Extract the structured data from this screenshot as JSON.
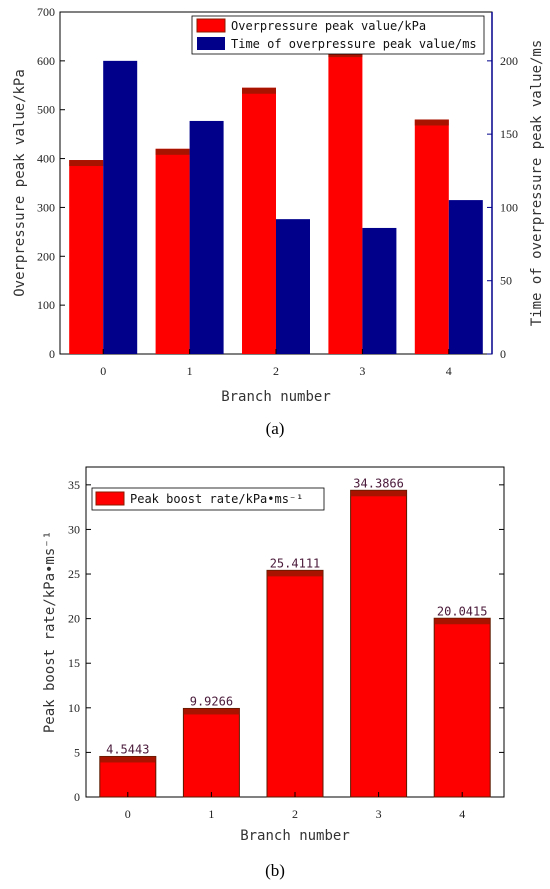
{
  "colors": {
    "red": "#ff0000",
    "navy": "#00008b",
    "cap": "#8b1a00",
    "leftAxis": "#000000",
    "rightAxis": "#00008b"
  },
  "chart_data": [
    {
      "type": "bar",
      "panel": "(a)",
      "categories": [
        "0",
        "1",
        "2",
        "3",
        "4"
      ],
      "xlabel": "Branch number",
      "ylabel": "Overpressure peak value/kPa",
      "y2label": "Time of overpressure peak value/ms",
      "ylim": [
        0,
        700
      ],
      "y2lim": [
        0,
        233.33
      ],
      "yticks": [
        0,
        100,
        200,
        300,
        400,
        500,
        600,
        700
      ],
      "y2ticks": [
        0,
        50,
        100,
        150,
        200
      ],
      "legend": "top-right",
      "grid": false,
      "series": [
        {
          "name": "Overpressure peak value/kPa",
          "axis": "left",
          "color": "#ff0000",
          "values": [
            397,
            420,
            545,
            620,
            480
          ]
        },
        {
          "name": "Time of overpressure peak value/ms",
          "axis": "right",
          "color": "#00008b",
          "values": [
            200,
            159,
            92,
            86,
            105
          ]
        }
      ]
    },
    {
      "type": "bar",
      "panel": "(b)",
      "categories": [
        "0",
        "1",
        "2",
        "3",
        "4"
      ],
      "xlabel": "Branch number",
      "ylabel": "Peak boost rate/kPa•ms⁻¹",
      "ylim": [
        0,
        37
      ],
      "yticks": [
        0,
        5,
        10,
        15,
        20,
        25,
        30,
        35
      ],
      "legend": "top-left",
      "grid": false,
      "series": [
        {
          "name": "Peak boost rate/kPa•ms⁻¹",
          "color": "#ff0000",
          "values": [
            4.5443,
            9.9266,
            25.4111,
            34.3866,
            20.0415
          ],
          "labels": [
            "4.5443",
            "9.9266",
            "25.4111",
            "34.3866",
            "20.0415"
          ]
        }
      ]
    }
  ]
}
